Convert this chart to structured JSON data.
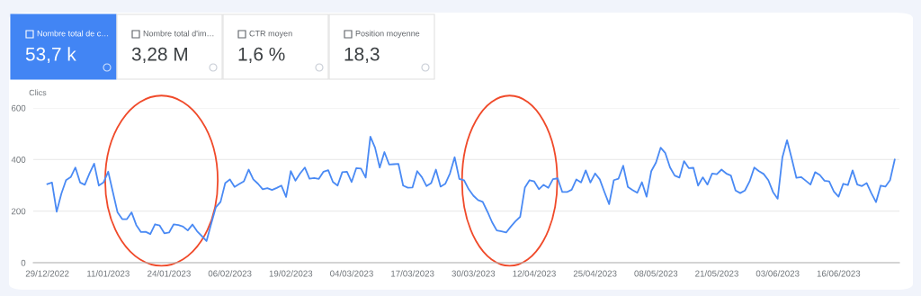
{
  "chart_data": [
    {
      "type": "other",
      "annotations": [
        "Nombre total de c…",
        "53,7 k",
        "Nombre total d'im…",
        "3,28 M",
        "CTR moyen",
        "1,6 %",
        "Position moyenne",
        "18,3"
      ]
    },
    {
      "type": "line",
      "ylabel": "Clics",
      "grid": "y",
      "legend": false,
      "marker": "none",
      "line_style": "solid",
      "x": [
        "2022-12-29",
        "2022-12-30",
        "2022-12-31",
        "2023-01-01",
        "2023-01-02",
        "2023-01-03",
        "2023-01-04",
        "2023-01-05",
        "2023-01-06",
        "2023-01-07",
        "2023-01-08",
        "2023-01-09",
        "2023-01-10",
        "2023-01-11",
        "2023-01-12",
        "2023-01-13",
        "2023-01-14",
        "2023-01-15",
        "2023-01-16",
        "2023-01-17",
        "2023-01-18",
        "2023-01-19",
        "2023-01-20",
        "2023-01-21",
        "2023-01-22",
        "2023-01-23",
        "2023-01-24",
        "2023-01-25",
        "2023-01-26",
        "2023-01-27",
        "2023-01-28",
        "2023-01-29",
        "2023-01-30",
        "2023-01-31",
        "2023-02-01",
        "2023-02-02",
        "2023-02-03",
        "2023-02-04",
        "2023-02-05",
        "2023-02-06",
        "2023-02-07",
        "2023-02-08",
        "2023-02-09",
        "2023-02-10",
        "2023-02-11",
        "2023-02-12",
        "2023-02-13",
        "2023-02-14",
        "2023-02-15",
        "2023-02-16",
        "2023-02-17",
        "2023-02-18",
        "2023-02-19",
        "2023-02-20",
        "2023-02-21",
        "2023-02-22",
        "2023-02-23",
        "2023-02-24",
        "2023-02-25",
        "2023-02-26",
        "2023-02-27",
        "2023-02-28",
        "2023-03-01",
        "2023-03-02",
        "2023-03-03",
        "2023-03-04",
        "2023-03-05",
        "2023-03-06",
        "2023-03-07",
        "2023-03-08",
        "2023-03-09",
        "2023-03-10",
        "2023-03-11",
        "2023-03-12",
        "2023-03-13",
        "2023-03-14",
        "2023-03-15",
        "2023-03-16",
        "2023-03-17",
        "2023-03-18",
        "2023-03-19",
        "2023-03-20",
        "2023-03-21",
        "2023-03-22",
        "2023-03-23",
        "2023-03-24",
        "2023-03-25",
        "2023-03-26",
        "2023-03-27",
        "2023-03-28",
        "2023-03-29",
        "2023-03-30",
        "2023-03-31",
        "2023-04-01",
        "2023-04-02",
        "2023-04-03",
        "2023-04-04",
        "2023-04-05",
        "2023-04-06",
        "2023-04-07",
        "2023-04-08",
        "2023-04-09",
        "2023-04-10",
        "2023-04-11",
        "2023-04-12",
        "2023-04-13",
        "2023-04-14",
        "2023-04-15",
        "2023-04-16",
        "2023-04-17",
        "2023-04-18",
        "2023-04-19",
        "2023-04-20",
        "2023-04-21",
        "2023-04-22",
        "2023-04-23",
        "2023-04-24",
        "2023-04-25",
        "2023-04-26",
        "2023-04-27",
        "2023-04-28",
        "2023-04-29",
        "2023-04-30",
        "2023-05-01",
        "2023-05-02",
        "2023-05-03",
        "2023-05-04",
        "2023-05-05",
        "2023-05-06",
        "2023-05-07",
        "2023-05-08",
        "2023-05-09",
        "2023-05-10",
        "2023-05-11",
        "2023-05-12",
        "2023-05-13",
        "2023-05-14",
        "2023-05-15",
        "2023-05-16",
        "2023-05-17",
        "2023-05-18",
        "2023-05-19",
        "2023-05-20",
        "2023-05-21",
        "2023-05-22",
        "2023-05-23",
        "2023-05-24",
        "2023-05-25",
        "2023-05-26",
        "2023-05-27",
        "2023-05-28",
        "2023-05-29",
        "2023-05-30",
        "2023-05-31",
        "2023-06-01",
        "2023-06-02",
        "2023-06-03",
        "2023-06-04",
        "2023-06-05",
        "2023-06-06",
        "2023-06-07",
        "2023-06-08",
        "2023-06-09",
        "2023-06-10",
        "2023-06-11",
        "2023-06-12",
        "2023-06-13",
        "2023-06-14",
        "2023-06-15",
        "2023-06-16",
        "2023-06-17",
        "2023-06-18",
        "2023-06-19",
        "2023-06-20",
        "2023-06-21",
        "2023-06-22",
        "2023-06-23",
        "2023-06-24",
        "2023-06-25",
        "2023-06-26",
        "2023-06-27",
        "2023-06-28"
      ],
      "series": [
        {
          "color": "#4a8af4",
          "values": [
            305,
            311,
            198,
            268,
            320,
            332,
            369,
            311,
            302,
            346,
            384,
            299,
            311,
            353,
            274,
            195,
            169,
            169,
            195,
            146,
            119,
            120,
            111,
            149,
            144,
            114,
            117,
            149,
            146,
            140,
            125,
            148,
            122,
            103,
            84,
            151,
            215,
            236,
            309,
            323,
            294,
            305,
            316,
            361,
            323,
            306,
            285,
            289,
            282,
            290,
            299,
            255,
            355,
            318,
            346,
            369,
            326,
            328,
            325,
            353,
            359,
            313,
            299,
            351,
            353,
            313,
            367,
            365,
            330,
            489,
            446,
            369,
            429,
            381,
            382,
            383,
            299,
            291,
            292,
            355,
            332,
            297,
            309,
            361,
            295,
            306,
            346,
            409,
            325,
            320,
            285,
            260,
            243,
            236,
            198,
            157,
            125,
            122,
            117,
            140,
            161,
            178,
            291,
            320,
            315,
            285,
            302,
            290,
            324,
            327,
            274,
            274,
            283,
            323,
            311,
            358,
            311,
            346,
            323,
            274,
            227,
            320,
            326,
            376,
            294,
            282,
            271,
            312,
            256,
            355,
            388,
            446,
            425,
            370,
            338,
            330,
            394,
            367,
            368,
            299,
            331,
            303,
            346,
            343,
            361,
            346,
            338,
            280,
            270,
            280,
            315,
            369,
            355,
            344,
            320,
            274,
            248,
            408,
            475,
            404,
            329,
            332,
            318,
            303,
            351,
            340,
            318,
            315,
            276,
            256,
            306,
            301,
            358,
            303,
            297,
            309,
            270,
            235,
            299,
            295,
            320,
            400
          ]
        }
      ],
      "xlim": [
        "2022-12-26",
        "2023-06-29"
      ],
      "xticks": [
        {
          "value": "2022-12-29",
          "label": "29/12/2022"
        },
        {
          "value": "2023-01-11",
          "label": "11/01/2023"
        },
        {
          "value": "2023-01-24",
          "label": "24/01/2023"
        },
        {
          "value": "2023-02-06",
          "label": "06/02/2023"
        },
        {
          "value": "2023-02-19",
          "label": "19/02/2023"
        },
        {
          "value": "2023-03-04",
          "label": "04/03/2023"
        },
        {
          "value": "2023-03-17",
          "label": "17/03/2023"
        },
        {
          "value": "2023-03-30",
          "label": "30/03/2023"
        },
        {
          "value": "2023-04-12",
          "label": "12/04/2023"
        },
        {
          "value": "2023-04-25",
          "label": "25/04/2023"
        },
        {
          "value": "2023-05-08",
          "label": "08/05/2023"
        },
        {
          "value": "2023-05-21",
          "label": "21/05/2023"
        },
        {
          "value": "2023-06-03",
          "label": "03/06/2023"
        },
        {
          "value": "2023-06-16",
          "label": "16/06/2023"
        }
      ],
      "ylim": [
        0,
        600
      ],
      "yticks": [
        0,
        200,
        400,
        600
      ]
    }
  ]
}
